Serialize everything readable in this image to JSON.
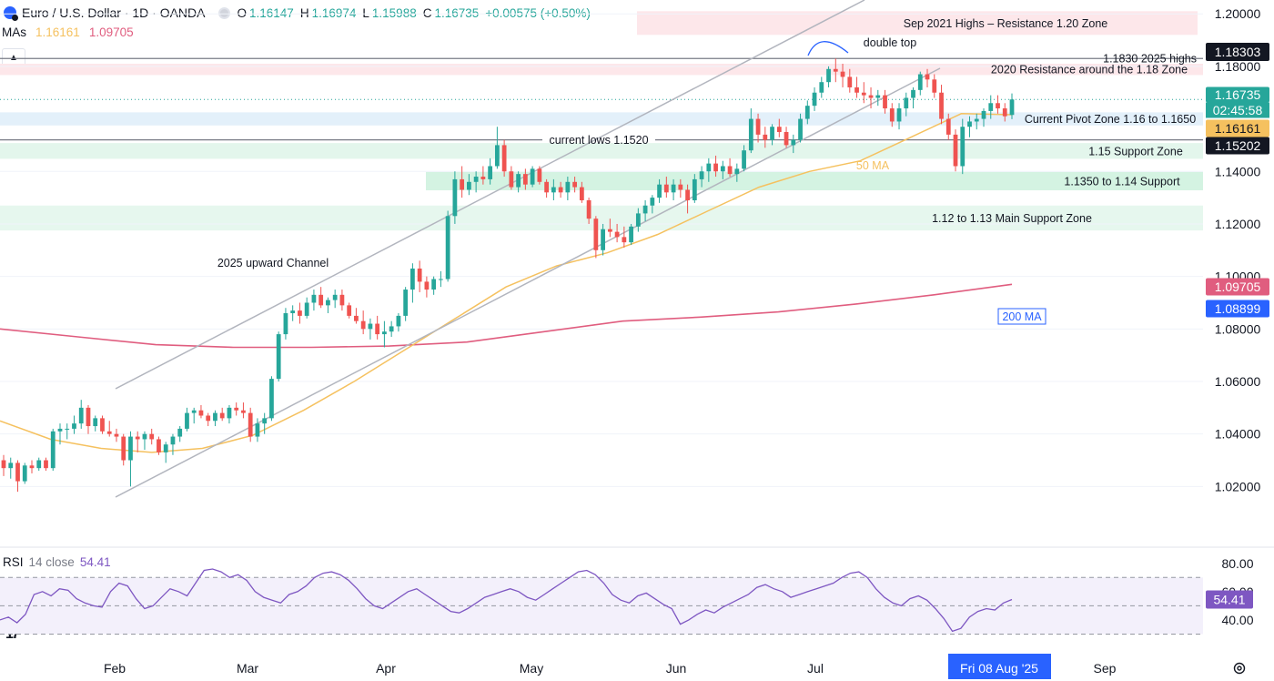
{
  "header": {
    "symbol": "Euro / U.S. Dollar · 1D · OANDA",
    "o_label": "O",
    "o_value": "1.16147",
    "h_label": "H",
    "h_value": "1.16974",
    "l_label": "L",
    "l_value": "1.15988",
    "c_label": "C",
    "c_value": "1.16735",
    "change": "+0.00575 (+0.50%)"
  },
  "mas": {
    "label": "MAs",
    "ma50_value": "1.16161",
    "ma200_value": "1.09705"
  },
  "rsi": {
    "label": "RSI",
    "params": "14 close",
    "value": "54.41"
  },
  "logo_text": "17",
  "colors": {
    "up": "#26a69a",
    "down": "#ef5350",
    "ma50": "#f5c15f",
    "ma200": "#e05d7f",
    "channel": "#b2b5be",
    "rsi": "#7e57c2"
  },
  "chart_data": [
    {
      "type": "candlestick",
      "title": "Euro / U.S. Dollar · 1D · OANDA",
      "x_ticks": [
        "Feb",
        "Mar",
        "Apr",
        "May",
        "Jun",
        "Jul",
        "Sep"
      ],
      "x_cursor_label": "Fri 08 Aug '25",
      "y_ticks": [
        "1.20000",
        "1.18000",
        "1.14000",
        "1.12000",
        "1.10000",
        "1.08000",
        "1.06000",
        "1.04000",
        "1.02000"
      ],
      "ylim": [
        1.0125,
        1.2025
      ],
      "price_tags": [
        {
          "text": "1.18303",
          "color": "#131722"
        },
        {
          "text": "1.16735",
          "color": "#26a69a"
        },
        {
          "text": "02:45:58",
          "color": "#26a69a"
        },
        {
          "text": "1.16161",
          "color": "#f5c15f"
        },
        {
          "text": "1.15202",
          "color": "#131722"
        },
        {
          "text": "1.09705",
          "color": "#e05d7f"
        },
        {
          "text": "1.08899",
          "color": "#2962ff"
        }
      ],
      "zones": [
        {
          "label": "Sep 2021 Highs – Resistance 1.20 Zone",
          "from": 1.192,
          "to": 1.201,
          "color": "#fde7ea"
        },
        {
          "label": "2020 Resistance around the 1.18 Zone",
          "from": 1.1767,
          "to": 1.181,
          "color": "#fde7ea"
        },
        {
          "label": "Current Pivot Zone 1.16 to 1.1650",
          "from": 1.1575,
          "to": 1.1625,
          "color": "#e3f0fa"
        },
        {
          "label": "1.15 Support Zone",
          "from": 1.1448,
          "to": 1.1508,
          "color": "#e3f6ec"
        },
        {
          "label": "1.1350 to 1.14 Support",
          "from": 1.1328,
          "to": 1.1398,
          "color": "#d4f3e2"
        },
        {
          "label": "1.12 to 1.13 Main Support Zone",
          "from": 1.1175,
          "to": 1.127,
          "color": "#e6f7ee"
        }
      ],
      "lines": [
        {
          "label": "1.1830 2025 highs",
          "y": 1.183
        },
        {
          "label": "current lows 1.1520",
          "y": 1.152
        }
      ],
      "annotations": [
        "double top",
        "2025 upward Channel",
        "50 MA",
        "200 MA"
      ],
      "series": [
        {
          "name": "MA 50",
          "values": [
            1.045,
            1.038,
            1.0345,
            1.033,
            1.0345,
            1.0395,
            1.049,
            1.06,
            1.072,
            1.084,
            1.096,
            1.104,
            1.109,
            1.116,
            1.125,
            1.134,
            1.14,
            1.144,
            1.153,
            1.162,
            1.1616
          ]
        },
        {
          "name": "MA 200",
          "values": [
            1.08,
            1.077,
            1.074,
            1.073,
            1.073,
            1.0735,
            1.075,
            1.079,
            1.083,
            1.0845,
            1.0865,
            1.0895,
            1.093,
            1.097
          ]
        }
      ],
      "candles_ohlc": [
        [
          1.03,
          1.032,
          1.024,
          1.027
        ],
        [
          1.027,
          1.031,
          1.023,
          1.029
        ],
        [
          1.029,
          1.03,
          1.018,
          1.022
        ],
        [
          1.022,
          1.029,
          1.021,
          1.028
        ],
        [
          1.028,
          1.03,
          1.025,
          1.027
        ],
        [
          1.027,
          1.031,
          1.026,
          1.03
        ],
        [
          1.03,
          1.031,
          1.026,
          1.027
        ],
        [
          1.027,
          1.042,
          1.026,
          1.041
        ],
        [
          1.041,
          1.044,
          1.036,
          1.042
        ],
        [
          1.042,
          1.044,
          1.038,
          1.042
        ],
        [
          1.042,
          1.047,
          1.04,
          1.044
        ],
        [
          1.044,
          1.053,
          1.042,
          1.05
        ],
        [
          1.05,
          1.051,
          1.04,
          1.043
        ],
        [
          1.043,
          1.047,
          1.041,
          1.046
        ],
        [
          1.046,
          1.047,
          1.04,
          1.041
        ],
        [
          1.041,
          1.045,
          1.039,
          1.04
        ],
        [
          1.04,
          1.042,
          1.037,
          1.039
        ],
        [
          1.039,
          1.04,
          1.028,
          1.03
        ],
        [
          1.03,
          1.041,
          1.02,
          1.039
        ],
        [
          1.039,
          1.041,
          1.033,
          1.038
        ],
        [
          1.038,
          1.041,
          1.034,
          1.04
        ],
        [
          1.04,
          1.042,
          1.036,
          1.038
        ],
        [
          1.038,
          1.039,
          1.032,
          1.033
        ],
        [
          1.033,
          1.037,
          1.029,
          1.036
        ],
        [
          1.036,
          1.04,
          1.032,
          1.039
        ],
        [
          1.039,
          1.043,
          1.037,
          1.042
        ],
        [
          1.042,
          1.05,
          1.041,
          1.048
        ],
        [
          1.048,
          1.05,
          1.044,
          1.049
        ],
        [
          1.049,
          1.051,
          1.046,
          1.047
        ],
        [
          1.047,
          1.048,
          1.043,
          1.045
        ],
        [
          1.045,
          1.049,
          1.043,
          1.048
        ],
        [
          1.048,
          1.05,
          1.045,
          1.046
        ],
        [
          1.046,
          1.051,
          1.044,
          1.05
        ],
        [
          1.05,
          1.052,
          1.047,
          1.049
        ],
        [
          1.049,
          1.052,
          1.046,
          1.048
        ],
        [
          1.048,
          1.05,
          1.037,
          1.039
        ],
        [
          1.039,
          1.046,
          1.037,
          1.044
        ],
        [
          1.044,
          1.048,
          1.04,
          1.046
        ],
        [
          1.046,
          1.062,
          1.045,
          1.061
        ],
        [
          1.061,
          1.079,
          1.06,
          1.078
        ],
        [
          1.078,
          1.088,
          1.076,
          1.086
        ],
        [
          1.086,
          1.089,
          1.083,
          1.087
        ],
        [
          1.087,
          1.09,
          1.082,
          1.085
        ],
        [
          1.085,
          1.092,
          1.084,
          1.09
        ],
        [
          1.09,
          1.095,
          1.087,
          1.093
        ],
        [
          1.093,
          1.096,
          1.088,
          1.089
        ],
        [
          1.089,
          1.092,
          1.086,
          1.091
        ],
        [
          1.091,
          1.095,
          1.088,
          1.093
        ],
        [
          1.093,
          1.095,
          1.087,
          1.089
        ],
        [
          1.089,
          1.09,
          1.084,
          1.085
        ],
        [
          1.085,
          1.088,
          1.082,
          1.083
        ],
        [
          1.083,
          1.087,
          1.078,
          1.08
        ],
        [
          1.08,
          1.084,
          1.076,
          1.082
        ],
        [
          1.082,
          1.085,
          1.076,
          1.078
        ],
        [
          1.078,
          1.083,
          1.073,
          1.079
        ],
        [
          1.079,
          1.083,
          1.077,
          1.081
        ],
        [
          1.081,
          1.086,
          1.079,
          1.085
        ],
        [
          1.085,
          1.096,
          1.083,
          1.095
        ],
        [
          1.095,
          1.105,
          1.09,
          1.103
        ],
        [
          1.103,
          1.106,
          1.094,
          1.098
        ],
        [
          1.098,
          1.1,
          1.092,
          1.095
        ],
        [
          1.095,
          1.1,
          1.093,
          1.099
        ],
        [
          1.099,
          1.102,
          1.096,
          1.099
        ],
        [
          1.099,
          1.125,
          1.098,
          1.123
        ],
        [
          1.123,
          1.14,
          1.12,
          1.137
        ],
        [
          1.137,
          1.142,
          1.13,
          1.133
        ],
        [
          1.133,
          1.139,
          1.131,
          1.136
        ],
        [
          1.136,
          1.14,
          1.132,
          1.138
        ],
        [
          1.138,
          1.142,
          1.135,
          1.137
        ],
        [
          1.137,
          1.145,
          1.135,
          1.142
        ],
        [
          1.142,
          1.157,
          1.141,
          1.15
        ],
        [
          1.15,
          1.152,
          1.138,
          1.14
        ],
        [
          1.14,
          1.142,
          1.133,
          1.134
        ],
        [
          1.134,
          1.14,
          1.132,
          1.139
        ],
        [
          1.139,
          1.141,
          1.133,
          1.135
        ],
        [
          1.135,
          1.142,
          1.134,
          1.141
        ],
        [
          1.141,
          1.142,
          1.135,
          1.136
        ],
        [
          1.136,
          1.137,
          1.13,
          1.132
        ],
        [
          1.132,
          1.137,
          1.129,
          1.134
        ],
        [
          1.134,
          1.136,
          1.13,
          1.132
        ],
        [
          1.132,
          1.138,
          1.129,
          1.136
        ],
        [
          1.136,
          1.138,
          1.132,
          1.134
        ],
        [
          1.134,
          1.136,
          1.128,
          1.129
        ],
        [
          1.129,
          1.13,
          1.12,
          1.122
        ],
        [
          1.122,
          1.123,
          1.107,
          1.11
        ],
        [
          1.11,
          1.12,
          1.108,
          1.118
        ],
        [
          1.118,
          1.122,
          1.115,
          1.117
        ],
        [
          1.117,
          1.12,
          1.113,
          1.115
        ],
        [
          1.115,
          1.119,
          1.111,
          1.113
        ],
        [
          1.113,
          1.12,
          1.112,
          1.119
        ],
        [
          1.119,
          1.126,
          1.117,
          1.124
        ],
        [
          1.124,
          1.129,
          1.121,
          1.127
        ],
        [
          1.127,
          1.131,
          1.124,
          1.13
        ],
        [
          1.13,
          1.137,
          1.128,
          1.135
        ],
        [
          1.135,
          1.138,
          1.13,
          1.132
        ],
        [
          1.132,
          1.137,
          1.129,
          1.135
        ],
        [
          1.135,
          1.137,
          1.13,
          1.133
        ],
        [
          1.133,
          1.135,
          1.124,
          1.129
        ],
        [
          1.129,
          1.139,
          1.128,
          1.137
        ],
        [
          1.137,
          1.142,
          1.134,
          1.14
        ],
        [
          1.14,
          1.145,
          1.136,
          1.143
        ],
        [
          1.143,
          1.146,
          1.138,
          1.14
        ],
        [
          1.14,
          1.144,
          1.137,
          1.142
        ],
        [
          1.142,
          1.145,
          1.138,
          1.139
        ],
        [
          1.139,
          1.143,
          1.136,
          1.141
        ],
        [
          1.141,
          1.15,
          1.14,
          1.148
        ],
        [
          1.148,
          1.164,
          1.147,
          1.16
        ],
        [
          1.16,
          1.162,
          1.151,
          1.154
        ],
        [
          1.154,
          1.157,
          1.149,
          1.152
        ],
        [
          1.152,
          1.158,
          1.15,
          1.157
        ],
        [
          1.157,
          1.16,
          1.153,
          1.155
        ],
        [
          1.155,
          1.157,
          1.149,
          1.15
        ],
        [
          1.15,
          1.154,
          1.147,
          1.152
        ],
        [
          1.152,
          1.162,
          1.151,
          1.16
        ],
        [
          1.16,
          1.167,
          1.158,
          1.165
        ],
        [
          1.165,
          1.172,
          1.163,
          1.17
        ],
        [
          1.17,
          1.176,
          1.168,
          1.174
        ],
        [
          1.174,
          1.18,
          1.172,
          1.179
        ],
        [
          1.179,
          1.183,
          1.174,
          1.178
        ],
        [
          1.178,
          1.181,
          1.172,
          1.176
        ],
        [
          1.176,
          1.179,
          1.17,
          1.172
        ],
        [
          1.172,
          1.176,
          1.168,
          1.17
        ],
        [
          1.17,
          1.174,
          1.166,
          1.169
        ],
        [
          1.169,
          1.172,
          1.164,
          1.168
        ],
        [
          1.168,
          1.171,
          1.165,
          1.169
        ],
        [
          1.169,
          1.171,
          1.162,
          1.164
        ],
        [
          1.164,
          1.166,
          1.157,
          1.159
        ],
        [
          1.159,
          1.166,
          1.156,
          1.164
        ],
        [
          1.164,
          1.17,
          1.161,
          1.168
        ],
        [
          1.168,
          1.172,
          1.164,
          1.171
        ],
        [
          1.171,
          1.178,
          1.169,
          1.177
        ],
        [
          1.177,
          1.179,
          1.172,
          1.175
        ],
        [
          1.175,
          1.177,
          1.168,
          1.17
        ],
        [
          1.17,
          1.173,
          1.158,
          1.16
        ],
        [
          1.16,
          1.162,
          1.152,
          1.154
        ],
        [
          1.154,
          1.156,
          1.14,
          1.142
        ],
        [
          1.142,
          1.16,
          1.139,
          1.157
        ],
        [
          1.157,
          1.161,
          1.153,
          1.159
        ],
        [
          1.159,
          1.162,
          1.156,
          1.16
        ],
        [
          1.16,
          1.164,
          1.157,
          1.163
        ],
        [
          1.163,
          1.169,
          1.16,
          1.166
        ],
        [
          1.166,
          1.169,
          1.162,
          1.164
        ],
        [
          1.164,
          1.166,
          1.159,
          1.161
        ],
        [
          1.1615,
          1.1697,
          1.1599,
          1.1674
        ]
      ],
      "rsi_y_ticks": [
        "80.00",
        "60.00",
        "40.00"
      ],
      "rsi_band": [
        30,
        70
      ],
      "rsi_values": [
        40,
        42,
        38,
        44,
        58,
        60,
        57,
        62,
        61,
        55,
        52,
        50,
        49,
        60,
        66,
        64,
        55,
        48,
        50,
        56,
        62,
        60,
        57,
        66,
        75,
        76,
        74,
        70,
        72,
        68,
        60,
        56,
        54,
        52,
        58,
        60,
        64,
        70,
        73,
        74,
        72,
        68,
        62,
        55,
        50,
        48,
        52,
        56,
        60,
        62,
        58,
        54,
        50,
        46,
        45,
        48,
        52,
        56,
        58,
        60,
        62,
        60,
        56,
        54,
        58,
        62,
        66,
        70,
        74,
        75,
        72,
        66,
        58,
        54,
        52,
        57,
        59,
        55,
        51,
        48,
        37,
        40,
        44,
        47,
        45,
        49,
        52,
        55,
        58,
        63,
        65,
        62,
        60,
        56,
        58,
        60,
        62,
        64,
        66,
        70,
        73,
        74,
        70,
        62,
        56,
        52,
        50,
        55,
        57,
        54,
        48,
        41,
        32,
        34,
        42,
        46,
        48,
        47,
        52,
        54.41
      ]
    }
  ]
}
